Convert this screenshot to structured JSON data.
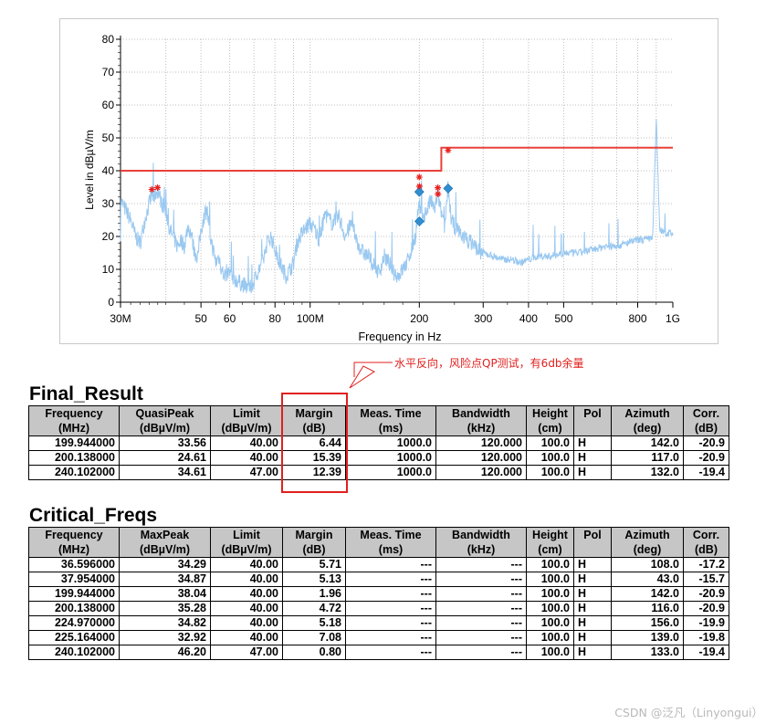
{
  "chart_data": {
    "type": "line",
    "xlabel": "Frequency in Hz",
    "ylabel": "Level in dBµV/m",
    "x_scale": "log",
    "xlim_mhz": [
      30,
      1000
    ],
    "ylim": [
      0,
      80
    ],
    "y_ticks": [
      0,
      10,
      20,
      30,
      40,
      50,
      60,
      70,
      80
    ],
    "x_ticks": [
      {
        "value": 30,
        "label": "30M"
      },
      {
        "value": 50,
        "label": "50"
      },
      {
        "value": 60,
        "label": "60"
      },
      {
        "value": 80,
        "label": "80"
      },
      {
        "value": 100,
        "label": "100M"
      },
      {
        "value": 200,
        "label": "200"
      },
      {
        "value": 300,
        "label": "300"
      },
      {
        "value": 400,
        "label": "400"
      },
      {
        "value": 500,
        "label": "500"
      },
      {
        "value": 800,
        "label": "800"
      },
      {
        "value": 1000,
        "label": "1G"
      }
    ],
    "grid": true,
    "colors": {
      "trace": "#99c8f0",
      "limit": "#e8403a",
      "peak": "#e8201e",
      "quasipeak": "#2f8fd0"
    },
    "limit_line": [
      {
        "x": 30,
        "y": 40
      },
      {
        "x": 230,
        "y": 40
      },
      {
        "x": 230,
        "y": 47
      },
      {
        "x": 1000,
        "y": 47
      }
    ],
    "trace": [
      [
        30,
        31
      ],
      [
        31,
        28
      ],
      [
        32,
        25
      ],
      [
        33,
        20
      ],
      [
        34,
        18
      ],
      [
        35,
        25
      ],
      [
        36,
        30
      ],
      [
        36.6,
        33
      ],
      [
        37,
        32
      ],
      [
        38,
        34
      ],
      [
        39,
        30
      ],
      [
        40,
        28
      ],
      [
        41,
        22
      ],
      [
        42,
        20
      ],
      [
        43,
        17
      ],
      [
        44,
        19
      ],
      [
        45,
        17
      ],
      [
        46,
        23
      ],
      [
        47,
        21
      ],
      [
        48,
        15
      ],
      [
        49,
        14
      ],
      [
        50,
        22
      ],
      [
        51,
        26
      ],
      [
        52,
        28
      ],
      [
        53,
        20
      ],
      [
        54,
        16
      ],
      [
        55,
        12
      ],
      [
        56,
        14
      ],
      [
        57,
        10
      ],
      [
        58,
        8
      ],
      [
        60,
        9
      ],
      [
        62,
        7
      ],
      [
        64,
        6
      ],
      [
        66,
        5
      ],
      [
        68,
        4
      ],
      [
        70,
        6
      ],
      [
        72,
        10
      ],
      [
        74,
        12
      ],
      [
        76,
        18
      ],
      [
        78,
        20
      ],
      [
        80,
        16
      ],
      [
        82,
        13
      ],
      [
        84,
        10
      ],
      [
        86,
        8
      ],
      [
        88,
        10
      ],
      [
        90,
        12
      ],
      [
        92,
        18
      ],
      [
        95,
        21
      ],
      [
        98,
        23
      ],
      [
        100,
        24
      ],
      [
        103,
        22
      ],
      [
        106,
        19
      ],
      [
        110,
        27
      ],
      [
        115,
        24
      ],
      [
        120,
        26
      ],
      [
        125,
        20
      ],
      [
        130,
        24
      ],
      [
        135,
        18
      ],
      [
        140,
        15
      ],
      [
        145,
        14
      ],
      [
        150,
        11
      ],
      [
        155,
        9
      ],
      [
        160,
        14
      ],
      [
        165,
        12
      ],
      [
        170,
        9
      ],
      [
        175,
        8
      ],
      [
        180,
        10
      ],
      [
        185,
        12
      ],
      [
        190,
        16
      ],
      [
        195,
        20
      ],
      [
        199.9,
        31
      ],
      [
        200.1,
        29
      ],
      [
        205,
        26
      ],
      [
        210,
        28
      ],
      [
        215,
        31
      ],
      [
        220,
        28
      ],
      [
        225,
        33
      ],
      [
        230,
        27
      ],
      [
        235,
        22
      ],
      [
        240,
        35
      ],
      [
        245,
        25
      ],
      [
        250,
        23
      ],
      [
        260,
        21
      ],
      [
        270,
        19
      ],
      [
        280,
        18
      ],
      [
        290,
        16
      ],
      [
        300,
        15
      ],
      [
        320,
        14
      ],
      [
        340,
        13
      ],
      [
        360,
        13
      ],
      [
        380,
        12
      ],
      [
        400,
        13
      ],
      [
        430,
        14
      ],
      [
        460,
        14
      ],
      [
        500,
        15
      ],
      [
        550,
        15
      ],
      [
        600,
        16
      ],
      [
        650,
        17
      ],
      [
        700,
        17
      ],
      [
        750,
        18
      ],
      [
        800,
        19
      ],
      [
        850,
        19
      ],
      [
        880,
        20
      ],
      [
        900,
        56
      ],
      [
        920,
        22
      ],
      [
        950,
        21
      ],
      [
        1000,
        21
      ]
    ],
    "peak_markers": [
      {
        "x": 36.596,
        "y": 34.29
      },
      {
        "x": 37.954,
        "y": 34.87
      },
      {
        "x": 199.944,
        "y": 38.04
      },
      {
        "x": 200.138,
        "y": 35.28
      },
      {
        "x": 224.97,
        "y": 34.82
      },
      {
        "x": 225.164,
        "y": 32.92
      },
      {
        "x": 240.102,
        "y": 46.2
      }
    ],
    "qp_markers": [
      {
        "x": 199.944,
        "y": 33.56
      },
      {
        "x": 200.138,
        "y": 24.61
      },
      {
        "x": 240.102,
        "y": 34.61
      }
    ]
  },
  "annotation": "水平反向，风险点QP测试，有6db余量",
  "final_result": {
    "title": "Final_Result",
    "headers": [
      [
        "Frequency",
        "(MHz)"
      ],
      [
        "QuasiPeak",
        "(dBµV/m)"
      ],
      [
        "Limit",
        "(dBµV/m)"
      ],
      [
        "Margin",
        "(dB)"
      ],
      [
        "Meas. Time",
        "(ms)"
      ],
      [
        "Bandwidth",
        "(kHz)"
      ],
      [
        "Height",
        "(cm)"
      ],
      [
        "Pol",
        ""
      ],
      [
        "Azimuth",
        "(deg)"
      ],
      [
        "Corr.",
        "(dB)"
      ]
    ],
    "rows": [
      [
        "199.944000",
        "33.56",
        "40.00",
        "6.44",
        "1000.0",
        "120.000",
        "100.0",
        "H",
        "142.0",
        "-20.9"
      ],
      [
        "200.138000",
        "24.61",
        "40.00",
        "15.39",
        "1000.0",
        "120.000",
        "100.0",
        "H",
        "117.0",
        "-20.9"
      ],
      [
        "240.102000",
        "34.61",
        "47.00",
        "12.39",
        "1000.0",
        "120.000",
        "100.0",
        "H",
        "132.0",
        "-19.4"
      ]
    ]
  },
  "critical_freqs": {
    "title": "Critical_Freqs",
    "headers": [
      [
        "Frequency",
        "(MHz)"
      ],
      [
        "MaxPeak",
        "(dBµV/m)"
      ],
      [
        "Limit",
        "(dBµV/m)"
      ],
      [
        "Margin",
        "(dB)"
      ],
      [
        "Meas. Time",
        "(ms)"
      ],
      [
        "Bandwidth",
        "(kHz)"
      ],
      [
        "Height",
        "(cm)"
      ],
      [
        "Pol",
        ""
      ],
      [
        "Azimuth",
        "(deg)"
      ],
      [
        "Corr.",
        "(dB)"
      ]
    ],
    "rows": [
      [
        "36.596000",
        "34.29",
        "40.00",
        "5.71",
        "---",
        "---",
        "100.0",
        "H",
        "108.0",
        "-17.2"
      ],
      [
        "37.954000",
        "34.87",
        "40.00",
        "5.13",
        "---",
        "---",
        "100.0",
        "H",
        "43.0",
        "-15.7"
      ],
      [
        "199.944000",
        "38.04",
        "40.00",
        "1.96",
        "---",
        "---",
        "100.0",
        "H",
        "142.0",
        "-20.9"
      ],
      [
        "200.138000",
        "35.28",
        "40.00",
        "4.72",
        "---",
        "---",
        "100.0",
        "H",
        "116.0",
        "-20.9"
      ],
      [
        "224.970000",
        "34.82",
        "40.00",
        "5.18",
        "---",
        "---",
        "100.0",
        "H",
        "156.0",
        "-19.9"
      ],
      [
        "225.164000",
        "32.92",
        "40.00",
        "7.08",
        "---",
        "---",
        "100.0",
        "H",
        "139.0",
        "-19.8"
      ],
      [
        "240.102000",
        "46.20",
        "47.00",
        "0.80",
        "---",
        "---",
        "100.0",
        "H",
        "133.0",
        "-19.4"
      ]
    ]
  },
  "watermark": "CSDN @泛凡（Linyongui）"
}
